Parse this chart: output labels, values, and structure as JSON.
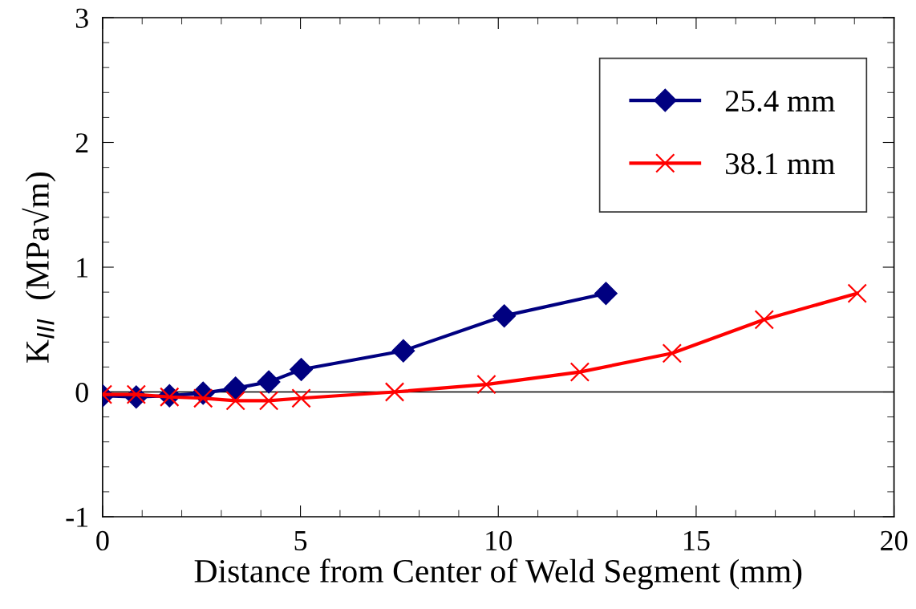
{
  "chart_data": {
    "type": "line",
    "xlabel": "Distance from Center of Weld Segment (mm)",
    "ylabel": "K$_{III}$  (MPa√m)",
    "series": [
      {
        "name": "25.4 mm",
        "color": "#000080",
        "marker": "diamond",
        "x": [
          0,
          0.85,
          1.69,
          2.54,
          3.36,
          4.2,
          5.02,
          7.6,
          10.15,
          12.72
        ],
        "values": [
          -0.03,
          -0.04,
          -0.03,
          -0.01,
          0.03,
          0.08,
          0.18,
          0.33,
          0.61,
          0.79
        ]
      },
      {
        "name": "38.1 mm",
        "color": "#ff0000",
        "marker": "cross",
        "x": [
          0,
          0.85,
          1.69,
          2.54,
          3.36,
          4.2,
          5.02,
          7.38,
          9.7,
          12.06,
          14.39,
          16.72,
          19.07
        ],
        "values": [
          -0.02,
          -0.02,
          -0.04,
          -0.05,
          -0.07,
          -0.07,
          -0.05,
          0,
          0.06,
          0.16,
          0.31,
          0.58,
          0.79
        ]
      }
    ],
    "xlim": [
      0,
      20
    ],
    "xticks": [
      0,
      5,
      10,
      15,
      20
    ],
    "ylim": [
      -1,
      3
    ],
    "yticks": [
      {
        "value": -1,
        "label": "-1"
      },
      0,
      1,
      2,
      3
    ],
    "ref_lines": [
      {
        "axis": "y",
        "value": 0,
        "color": "#000000"
      }
    ],
    "grid": false,
    "legend": "top right",
    "line_style": "solid"
  }
}
